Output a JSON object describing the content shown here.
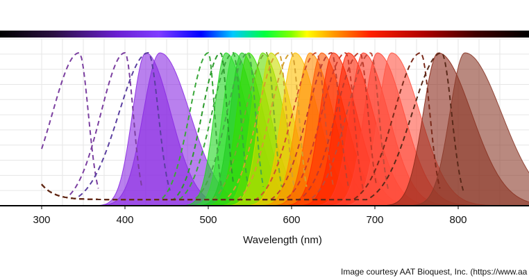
{
  "chart_data": {
    "type": "area",
    "title": "",
    "xlabel": "Wavelength (nm)",
    "ylabel": "",
    "xlim": [
      250,
      880
    ],
    "ylim": [
      0,
      1
    ],
    "x_ticks": [
      "300",
      "400",
      "500",
      "600",
      "700",
      "800"
    ],
    "grid": true,
    "legend": "none",
    "spectrum_bar": true,
    "emission_series": [
      {
        "peak": 425,
        "width_left": 16,
        "width_right": 30,
        "color": "#8a2be2"
      },
      {
        "peak": 442,
        "width_left": 20,
        "width_right": 36,
        "color": "#8a2be2"
      },
      {
        "peak": 521,
        "width_left": 14,
        "width_right": 26,
        "color": "#1fd61f"
      },
      {
        "peak": 531,
        "width_left": 14,
        "width_right": 26,
        "color": "#2ee02e"
      },
      {
        "peak": 540,
        "width_left": 14,
        "width_right": 26,
        "color": "#22cc22"
      },
      {
        "peak": 548,
        "width_left": 14,
        "width_right": 26,
        "color": "#33dd00"
      },
      {
        "peak": 565,
        "width_left": 14,
        "width_right": 26,
        "color": "#66dd00"
      },
      {
        "peak": 575,
        "width_left": 14,
        "width_right": 26,
        "color": "#ccdd00"
      },
      {
        "peak": 604,
        "width_left": 16,
        "width_right": 28,
        "color": "#ffc000"
      },
      {
        "peak": 622,
        "width_left": 16,
        "width_right": 28,
        "color": "#ff8c00"
      },
      {
        "peak": 636,
        "width_left": 16,
        "width_right": 28,
        "color": "#ff5500"
      },
      {
        "peak": 650,
        "width_left": 16,
        "width_right": 28,
        "color": "#ff2a00"
      },
      {
        "peak": 668,
        "width_left": 16,
        "width_right": 30,
        "color": "#ff2200"
      },
      {
        "peak": 686,
        "width_left": 16,
        "width_right": 30,
        "color": "#ff3a26"
      },
      {
        "peak": 703,
        "width_left": 16,
        "width_right": 32,
        "color": "#ff4433"
      },
      {
        "peak": 720,
        "width_left": 16,
        "width_right": 34,
        "color": "#ff5544"
      },
      {
        "peak": 776,
        "width_left": 18,
        "width_right": 40,
        "color": "#8b2a1a"
      },
      {
        "peak": 808,
        "width_left": 18,
        "width_right": 44,
        "color": "#8b3a2a"
      }
    ],
    "excitation_series": [
      {
        "peak": 345,
        "width": 20,
        "color": "#7b3fa0"
      },
      {
        "peak": 400,
        "width": 18,
        "color": "#7b3fa0"
      },
      {
        "peak": 428,
        "width": 22,
        "color": "#5b3fa0"
      },
      {
        "peak": 500,
        "width": 14,
        "color": "#3aa83a"
      },
      {
        "peak": 515,
        "width": 14,
        "color": "#2b9a2b"
      },
      {
        "peak": 530,
        "width": 16,
        "color": "#3aa83a"
      },
      {
        "peak": 548,
        "width": 16,
        "color": "#48a848"
      },
      {
        "peak": 570,
        "width": 16,
        "color": "#7aa830"
      },
      {
        "peak": 585,
        "width": 16,
        "color": "#d4a030"
      },
      {
        "peak": 600,
        "width": 16,
        "color": "#d4a030"
      },
      {
        "peak": 630,
        "width": 18,
        "color": "#d05030"
      },
      {
        "peak": 648,
        "width": 18,
        "color": "#c04030"
      },
      {
        "peak": 665,
        "width": 18,
        "color": "#d03a2a"
      },
      {
        "peak": 682,
        "width": 18,
        "color": "#c03a2a"
      },
      {
        "peak": 695,
        "width": 18,
        "color": "#c04a3a"
      },
      {
        "peak": 755,
        "width": 20,
        "color": "#7a2a1a"
      },
      {
        "peak": 780,
        "width": 22,
        "color": "#5a2a1a"
      }
    ]
  },
  "credit": "Image courtesy AAT Bioquest, Inc. (https://www.aa"
}
